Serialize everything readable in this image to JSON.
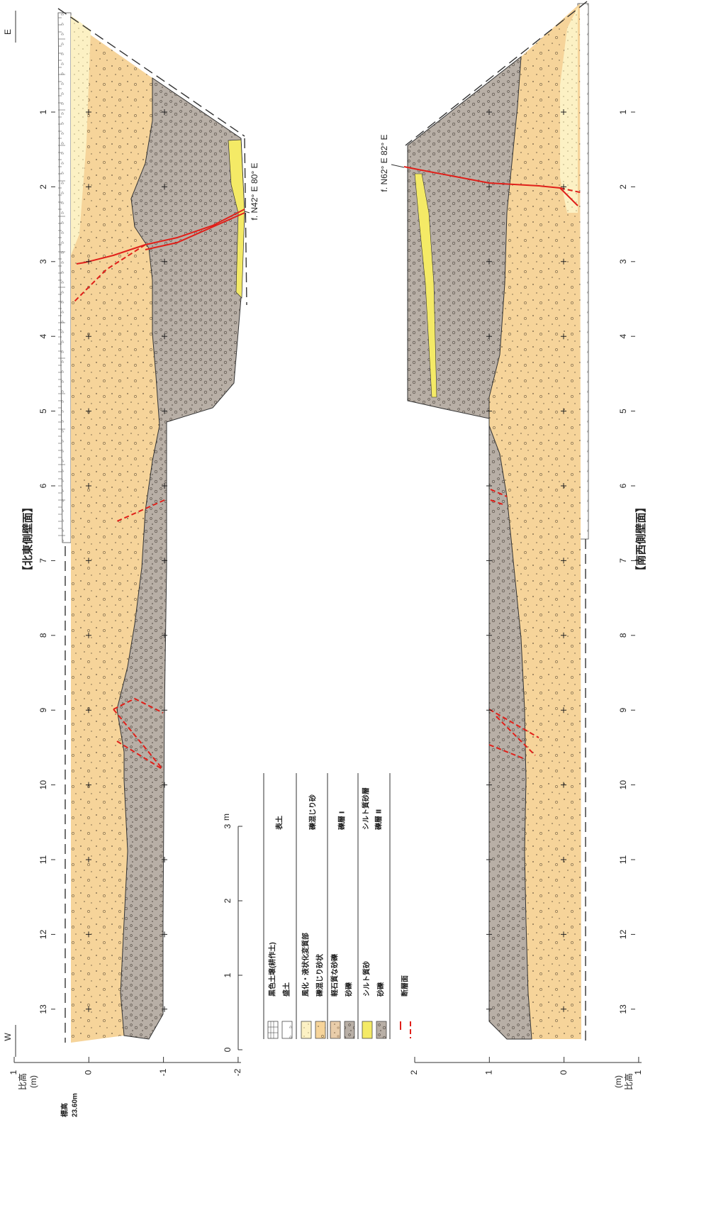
{
  "northeast_wall": {
    "title": "【北東側壁面】",
    "east": "E",
    "west": "W",
    "fault": "f. N42° E 80° E",
    "distance_ticks": [
      1,
      2,
      3,
      4,
      5,
      6,
      7,
      8,
      9,
      10,
      11,
      12,
      13
    ],
    "height_label": "比高",
    "height_unit": "(m)",
    "height_ticks": [
      1,
      0,
      -1,
      -2
    ],
    "elevation_label": "標高",
    "elevation_value": "23.60m"
  },
  "southwest_wall": {
    "title": "【南西側壁面】",
    "fault": "f. N62° E 82° E",
    "distance_ticks": [
      1,
      2,
      3,
      4,
      5,
      6,
      7,
      8,
      9,
      10,
      11,
      12,
      13
    ],
    "height_label": "比高",
    "height_unit": "(m)",
    "height_ticks": [
      2,
      1,
      0,
      1
    ]
  },
  "scale_bar": {
    "ticks": [
      0,
      1,
      2,
      3
    ],
    "unit": "m"
  },
  "legend": {
    "items": [
      {
        "label": "黒色土壌(耕作土)"
      },
      {
        "label": "盛土"
      },
      {
        "label": "風化・液状化変質部"
      },
      {
        "label": "礫混じり砂状"
      },
      {
        "label": "軽石質な砂礫"
      },
      {
        "label": "砂礫"
      },
      {
        "label": "シルト質砂"
      },
      {
        "label": "砂礫"
      },
      {
        "label": "断層面"
      }
    ],
    "groups": [
      {
        "label": "表土"
      },
      {
        "label": "礫混じり砂"
      },
      {
        "label": "礫層 Ⅰ"
      },
      {
        "label": "シルト質砂層"
      },
      {
        "label": "礫層 Ⅱ"
      }
    ]
  }
}
